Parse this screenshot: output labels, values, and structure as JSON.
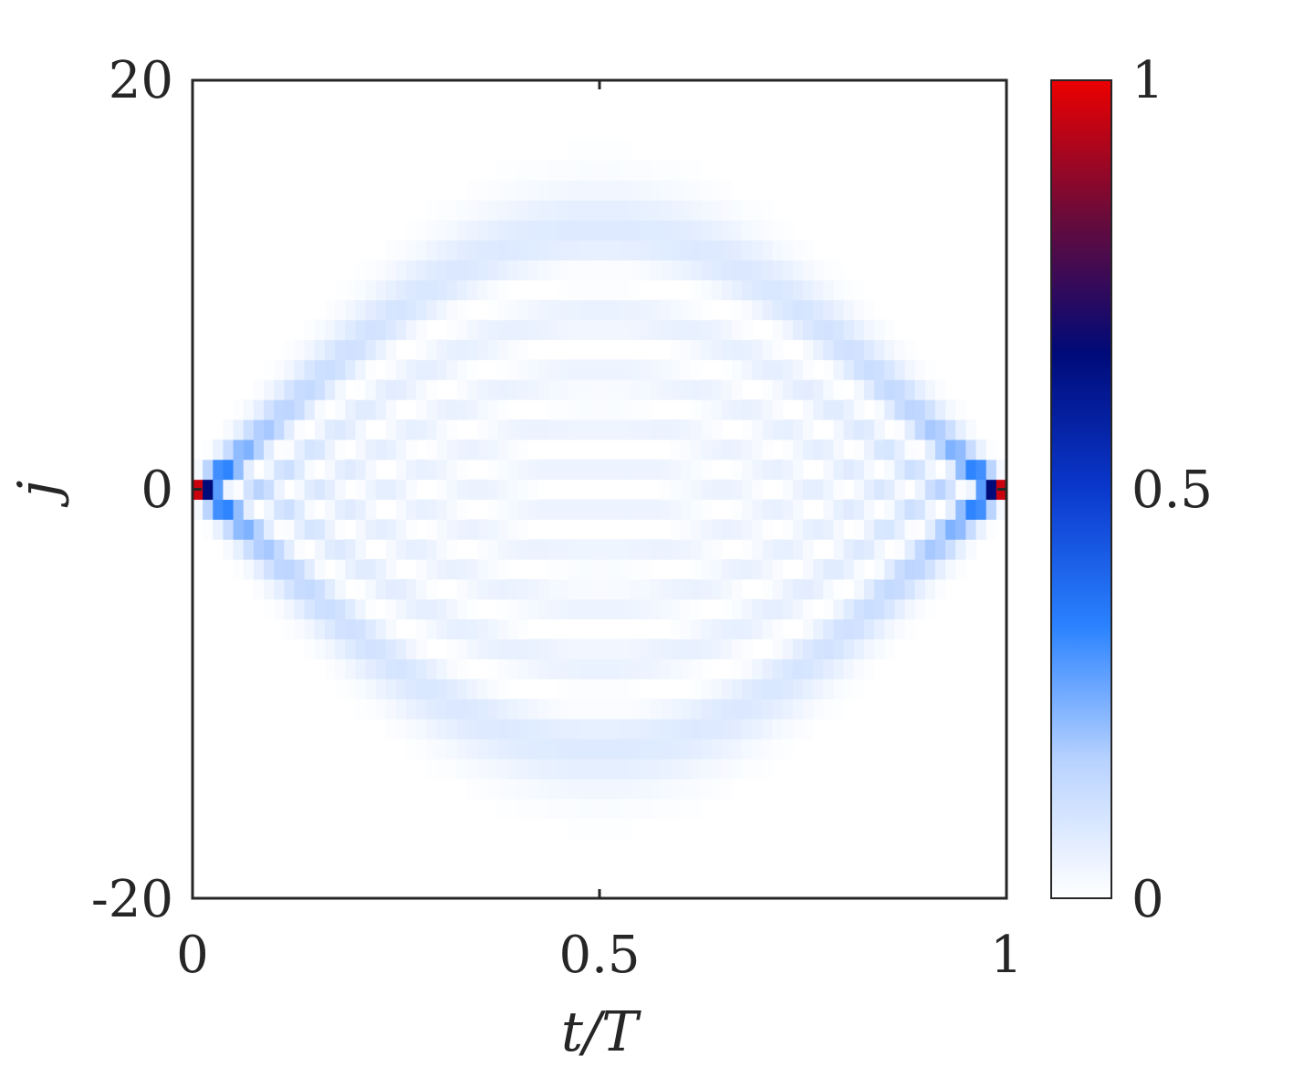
{
  "chart_data": {
    "type": "heatmap",
    "title": "",
    "xlabel": "t/T",
    "ylabel": "j",
    "xlim": [
      0,
      1
    ],
    "ylim": [
      -20,
      20
    ],
    "x_ticks": [
      "0",
      "0.5",
      "1"
    ],
    "y_ticks": [
      "-20",
      "0",
      "20"
    ],
    "colorbar": {
      "ticks": [
        "0",
        "0.5",
        "1"
      ],
      "range": [
        0,
        1
      ],
      "colors": [
        "#ffffff",
        "#b9d3ff",
        "#2a82ff",
        "#0a38cc",
        "#000a78",
        "#6a0b3a",
        "#ec0000"
      ]
    },
    "site_range": [
      -20,
      20
    ],
    "description_values": {
      "peak_value_at_t0_and_t1": 1.0,
      "max_spread_sites_at_mid_period": 15
    }
  }
}
